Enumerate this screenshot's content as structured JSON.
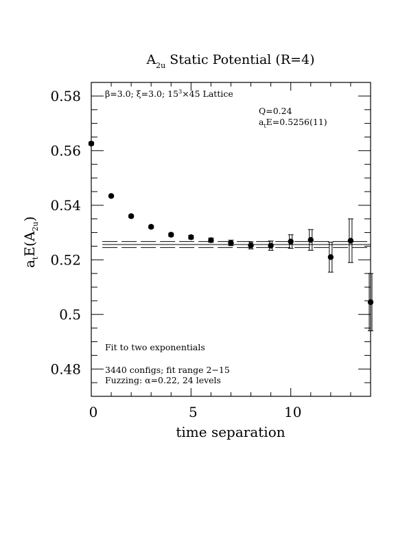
{
  "chart_data": {
    "type": "scatter",
    "title": {
      "main": "A",
      "sub": "2u",
      "rest": " Static Potential (R=4)"
    },
    "xlabel": "time separation",
    "ylabel": {
      "a": "a",
      "t": "t",
      "e": "E(A",
      "sub": "2u",
      "close": ")"
    },
    "xlim": [
      0,
      14
    ],
    "ylim": [
      0.47,
      0.585
    ],
    "x_ticks": [
      0,
      5,
      10
    ],
    "y_ticks": [
      0.48,
      0.5,
      0.52,
      0.54,
      0.56,
      0.58
    ],
    "x_tick_labels": [
      "0",
      "5",
      "10"
    ],
    "y_tick_labels": [
      "0.48",
      "0.5",
      "0.52",
      "0.54",
      "0.56",
      "0.58"
    ],
    "points": [
      {
        "t": 0,
        "E": 0.5626,
        "err": 0.0006
      },
      {
        "t": 1,
        "E": 0.5434,
        "err": 0.0004
      },
      {
        "t": 2,
        "E": 0.536,
        "err": 0.0005
      },
      {
        "t": 3,
        "E": 0.5321,
        "err": 0.0005
      },
      {
        "t": 4,
        "E": 0.5292,
        "err": 0.0006
      },
      {
        "t": 5,
        "E": 0.5283,
        "err": 0.0007
      },
      {
        "t": 6,
        "E": 0.5272,
        "err": 0.0008
      },
      {
        "t": 7,
        "E": 0.5262,
        "err": 0.001
      },
      {
        "t": 8,
        "E": 0.5253,
        "err": 0.0013
      },
      {
        "t": 9,
        "E": 0.5252,
        "err": 0.0017
      },
      {
        "t": 10,
        "E": 0.5267,
        "err": 0.0025
      },
      {
        "t": 11,
        "E": 0.5273,
        "err": 0.0038
      },
      {
        "t": 12,
        "E": 0.521,
        "err": 0.0055
      },
      {
        "t": 13,
        "E": 0.527,
        "err": 0.008
      },
      {
        "t": 14,
        "E": 0.5045,
        "err": 0.0105
      }
    ],
    "fit": {
      "value": 0.5256,
      "err": 0.0011,
      "t_start": 2,
      "t_end": 15
    },
    "annotations": {
      "lattice": {
        "beta": "β=3.0; ξ=3.0; 15",
        "exp": "3",
        "rest": "×45 Lattice"
      },
      "q": "Q=0.24",
      "ate": {
        "a": "a",
        "sub": "t",
        "rest": "E=0.5256(11)"
      },
      "fit_method": "Fit to two exponentials",
      "configs": "3440 configs; fit range 2−15",
      "fuzzing": "Fuzzing: α=0.22, 24 levels"
    }
  }
}
